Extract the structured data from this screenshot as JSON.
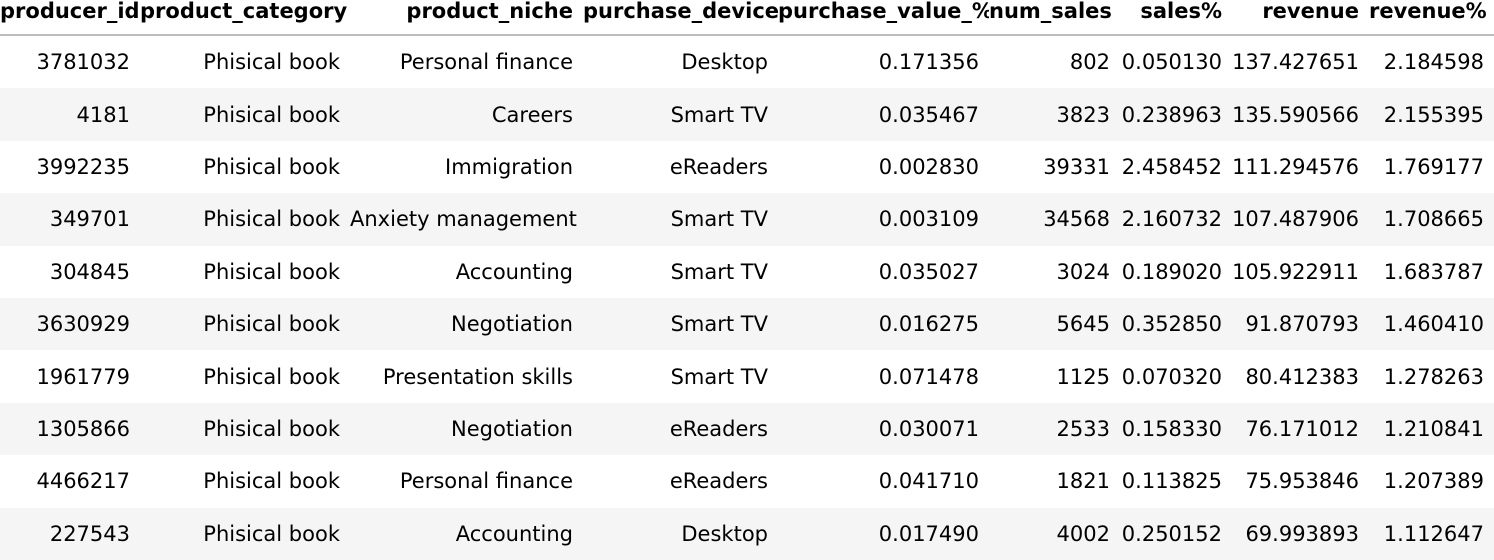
{
  "table": {
    "columns": [
      "producer_id",
      "product_category",
      "product_niche",
      "purchase_device",
      "purchase_value_%",
      "num_sales",
      "sales%",
      "revenue",
      "revenue%"
    ],
    "rows": [
      [
        "3781032",
        "Phisical book",
        "Personal finance",
        "Desktop",
        "0.171356",
        "802",
        "0.050130",
        "137.427651",
        "2.184598"
      ],
      [
        "4181",
        "Phisical book",
        "Careers",
        "Smart TV",
        "0.035467",
        "3823",
        "0.238963",
        "135.590566",
        "2.155395"
      ],
      [
        "3992235",
        "Phisical book",
        "Immigration",
        "eReaders",
        "0.002830",
        "39331",
        "2.458452",
        "111.294576",
        "1.769177"
      ],
      [
        "349701",
        "Phisical book",
        "Anxiety management",
        "Smart TV",
        "0.003109",
        "34568",
        "2.160732",
        "107.487906",
        "1.708665"
      ],
      [
        "304845",
        "Phisical book",
        "Accounting",
        "Smart TV",
        "0.035027",
        "3024",
        "0.189020",
        "105.922911",
        "1.683787"
      ],
      [
        "3630929",
        "Phisical book",
        "Negotiation",
        "Smart TV",
        "0.016275",
        "5645",
        "0.352850",
        "91.870793",
        "1.460410"
      ],
      [
        "1961779",
        "Phisical book",
        "Presentation skills",
        "Smart TV",
        "0.071478",
        "1125",
        "0.070320",
        "80.412383",
        "1.278263"
      ],
      [
        "1305866",
        "Phisical book",
        "Negotiation",
        "eReaders",
        "0.030071",
        "2533",
        "0.158330",
        "76.171012",
        "1.210841"
      ],
      [
        "4466217",
        "Phisical book",
        "Personal finance",
        "eReaders",
        "0.041710",
        "1821",
        "0.113825",
        "75.953846",
        "1.207389"
      ],
      [
        "227543",
        "Phisical book",
        "Accounting",
        "Desktop",
        "0.017490",
        "4002",
        "0.250152",
        "69.993893",
        "1.112647"
      ]
    ]
  }
}
